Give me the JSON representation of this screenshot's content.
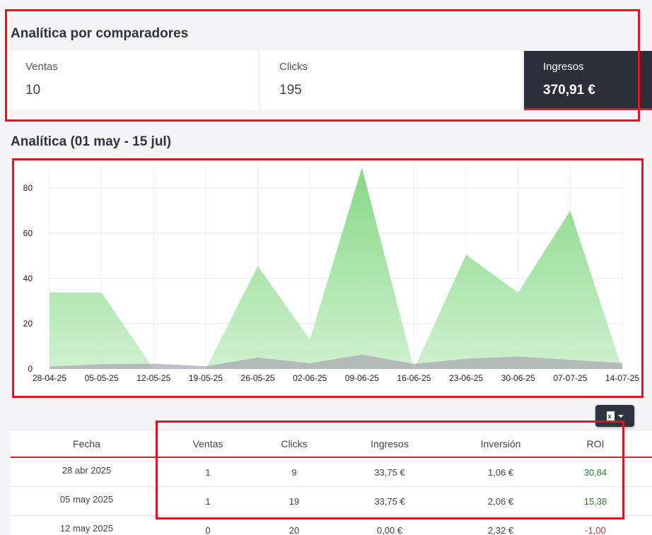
{
  "comparators": {
    "title": "Analítica por comparadores",
    "cards": [
      {
        "label": "Ventas",
        "value": "10"
      },
      {
        "label": "Clicks",
        "value": "195"
      },
      {
        "label": "Ingresos",
        "value": "370,91 €",
        "active": true
      }
    ]
  },
  "analytics": {
    "title": "Analítica (01 may - 15 jul)"
  },
  "colors": {
    "accent_red": "#e11d2a",
    "dark": "#2f3340",
    "area_green": "#8fdc8f",
    "area_gray": "#a9a9b3",
    "roi_positive": "#2d7a2d",
    "roi_negative": "#c0392b"
  },
  "chart_data": {
    "type": "area",
    "x": [
      "28-04-25",
      "05-05-25",
      "12-05-25",
      "19-05-25",
      "26-05-25",
      "02-06-25",
      "09-06-25",
      "16-06-25",
      "23-06-25",
      "30-06-25",
      "07-07-25",
      "14-07-25"
    ],
    "series": [
      {
        "values": [
          33.75,
          33.75,
          0,
          0,
          45.5,
          13,
          89,
          0,
          50.5,
          33.75,
          70,
          0
        ]
      },
      {
        "values": [
          1.06,
          2.06,
          2.32,
          1.2,
          5,
          2.5,
          6.3,
          2.2,
          4.5,
          5.5,
          4,
          2.6
        ]
      }
    ],
    "yticks": [
      0,
      20,
      40,
      60,
      80
    ],
    "ylim": [
      0,
      90
    ],
    "grid": true
  },
  "export": {
    "icon": "excel-file-icon"
  },
  "table": {
    "headers": [
      "Fecha",
      "Ventas",
      "Clicks",
      "Ingresos",
      "Inversión",
      "ROI"
    ],
    "rows": [
      [
        "28 abr 2025",
        "1",
        "9",
        "33,75 €",
        "1,06 €",
        "30,84"
      ],
      [
        "05 may 2025",
        "1",
        "19",
        "33,75 €",
        "2,06 €",
        "15,38"
      ],
      [
        "12 may 2025",
        "0",
        "20",
        "0,00 €",
        "2,32 €",
        "-1,00"
      ]
    ]
  }
}
